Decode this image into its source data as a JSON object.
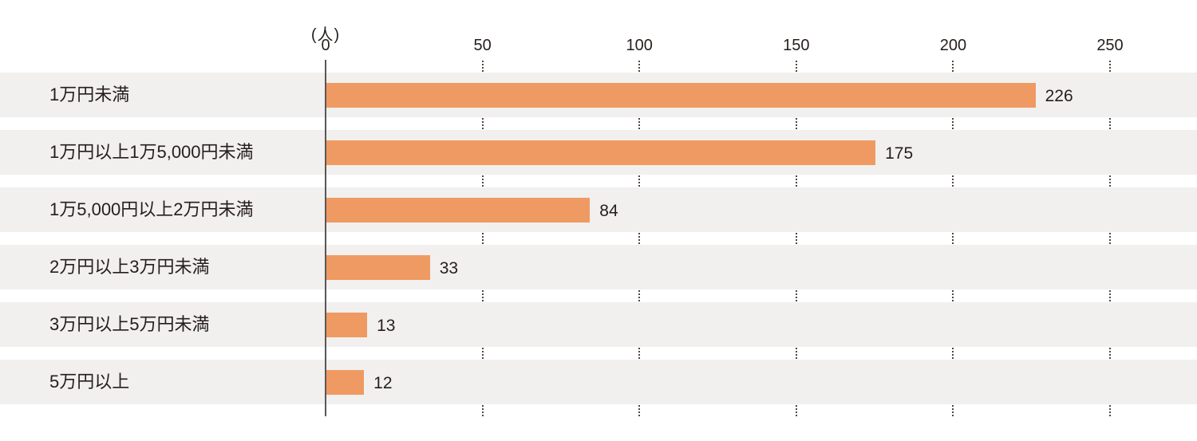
{
  "chart_data": {
    "type": "bar",
    "orientation": "horizontal",
    "title": "",
    "unit_label": "(人)",
    "categories": [
      "1万円未満",
      "1万円以上1万5,000円未満",
      "1万5,000円以上2万円未満",
      "2万円以上3万円未満",
      "3万円以上5万円未満",
      "5万円以上"
    ],
    "values": [
      226,
      175,
      84,
      33,
      13,
      12
    ],
    "xlim": [
      0,
      250
    ],
    "tick_values": [
      0,
      50,
      100,
      150,
      200,
      250
    ],
    "grid": "dotted vertical segments in row gaps",
    "legend": "none",
    "colors": {
      "bar": "#ef9a62",
      "row_background": "#f1f0ef",
      "axis_line": "#595757",
      "grid_dots": "#4c4948",
      "text": "#251e1c",
      "page_background": "#ffffff"
    }
  }
}
